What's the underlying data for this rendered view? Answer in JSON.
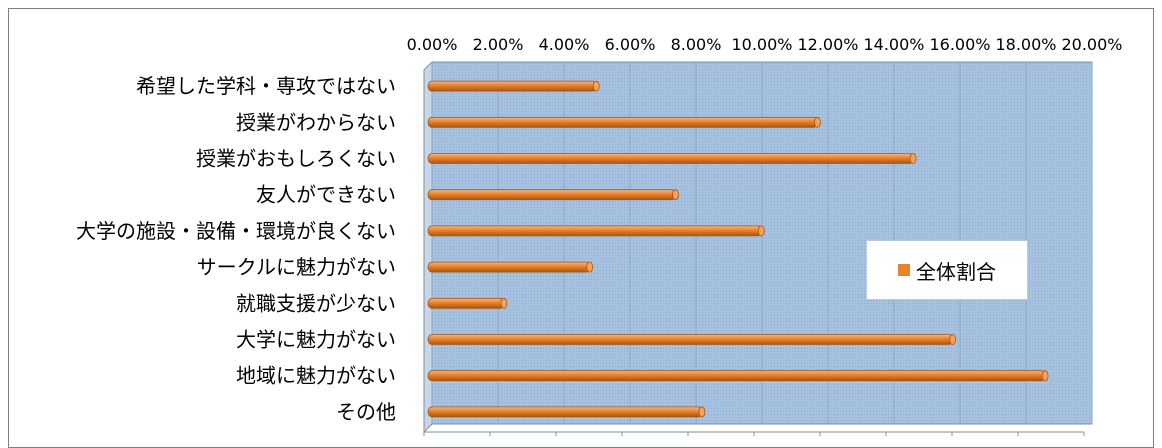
{
  "chart_data": {
    "type": "bar",
    "orientation": "horizontal",
    "categories": [
      "希望した学科・専攻ではない",
      "授業がわからない",
      "授業がおもしろくない",
      "友人ができない",
      "大学の施設・設備・環境が良くない",
      "サークルに魅力がない",
      "就職支援が少ない",
      "大学に魅力がない",
      "地域に魅力がない",
      "その他"
    ],
    "series": [
      {
        "name": "全体割合",
        "values": [
          5.1,
          11.8,
          14.7,
          7.5,
          10.1,
          4.9,
          2.3,
          15.9,
          18.7,
          8.3
        ]
      }
    ],
    "xlim": [
      0,
      20
    ],
    "x_tick_labels": [
      "0.00%",
      "2.00%",
      "4.00%",
      "6.00%",
      "8.00%",
      "10.00%",
      "12.00%",
      "14.00%",
      "16.00%",
      "18.00%",
      "20.00%"
    ],
    "x_axis_position": "top",
    "grid": true,
    "legend_position": "right",
    "colors": {
      "bar": "#e8822a",
      "bar_dark": "#a85514",
      "bar_light": "#f6b884",
      "plot_back": "#a7c2e0",
      "grid": "#8ea6c2",
      "legend_border": "#b7c9e6"
    }
  }
}
